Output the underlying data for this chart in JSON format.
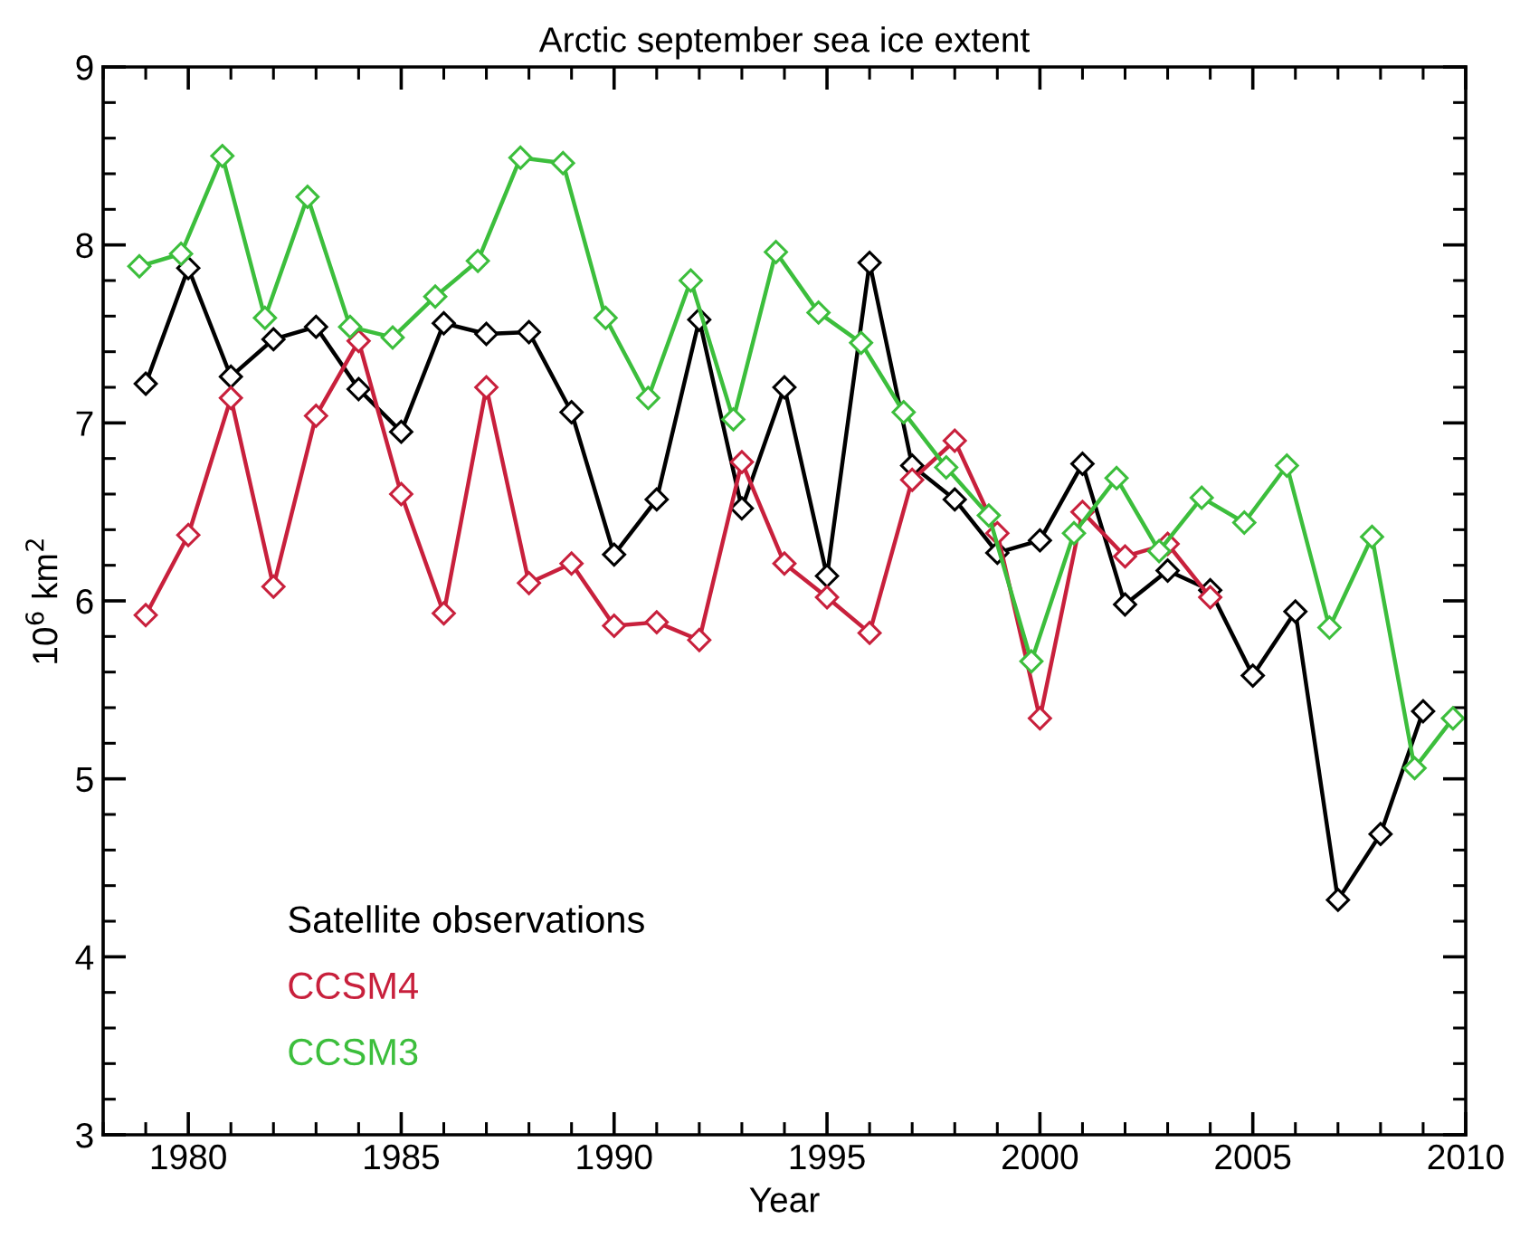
{
  "chart_data": {
    "type": "line",
    "title": "Arctic september sea ice extent",
    "xlabel": "Year",
    "ylabel": "10$^{6}$ km$^{2}$",
    "xlim": [
      1978,
      2010
    ],
    "xticks": [
      1980,
      1985,
      1990,
      1995,
      2000,
      2005,
      2010
    ],
    "ylim": [
      3,
      9
    ],
    "yticks": [
      3,
      4,
      5,
      6,
      7,
      8,
      9
    ],
    "marker": "diamond",
    "grid": false,
    "legend": "bottom left",
    "series": [
      {
        "name": "Satellite observations",
        "color": "#000000",
        "x": [
          1979,
          1980,
          1981,
          1982,
          1983,
          1984,
          1985,
          1986,
          1987,
          1988,
          1989,
          1990,
          1991,
          1992,
          1993,
          1994,
          1995,
          1996,
          1997,
          1998,
          1999,
          2000,
          2001,
          2002,
          2003,
          2004,
          2005,
          2006,
          2007,
          2008,
          2009
        ],
        "values": [
          7.22,
          7.87,
          7.26,
          7.47,
          7.54,
          7.19,
          6.95,
          7.56,
          7.5,
          7.51,
          7.06,
          6.26,
          6.57,
          7.58,
          6.52,
          7.2,
          6.14,
          7.9,
          6.76,
          6.57,
          6.27,
          6.34,
          6.77,
          5.98,
          6.17,
          6.06,
          5.58,
          5.94,
          4.32,
          4.69,
          5.38
        ]
      },
      {
        "name": "CCSM4",
        "color": "#c8203c",
        "x": [
          1979,
          1980,
          1981,
          1982,
          1983,
          1984,
          1985,
          1986,
          1987,
          1988,
          1989,
          1990,
          1991,
          1992,
          1993,
          1994,
          1995,
          1996,
          1997,
          1998,
          1999,
          2000,
          2001,
          2002,
          2003,
          2004
        ],
        "values": [
          5.92,
          6.37,
          7.14,
          6.08,
          7.04,
          7.46,
          6.6,
          5.93,
          7.2,
          6.1,
          6.21,
          5.86,
          5.88,
          5.78,
          6.78,
          6.21,
          6.02,
          5.82,
          6.68,
          6.9,
          6.38,
          5.34,
          6.5,
          6.25,
          6.32,
          6.02
        ]
      },
      {
        "name": "CCSM3",
        "color": "#3cbe3c",
        "x": [
          1978.85,
          1979.83,
          1980.8,
          1981.8,
          1982.8,
          1983.8,
          1984.8,
          1985.8,
          1986.8,
          1987.8,
          1988.8,
          1989.8,
          1990.8,
          1991.8,
          1992.8,
          1993.8,
          1994.8,
          1995.8,
          1996.8,
          1997.8,
          1998.8,
          1999.8,
          2000.8,
          2001.8,
          2002.8,
          2003.8,
          2004.8,
          2005.8,
          2006.8,
          2007.8,
          2008.8,
          2009.7
        ],
        "values": [
          7.88,
          7.95,
          8.5,
          7.59,
          8.27,
          7.54,
          7.48,
          7.71,
          7.91,
          8.49,
          8.46,
          7.59,
          7.14,
          7.8,
          7.02,
          7.96,
          7.62,
          7.45,
          7.06,
          6.75,
          6.48,
          5.66,
          6.38,
          6.69,
          6.28,
          6.58,
          6.44,
          6.76,
          5.85,
          6.36,
          5.06,
          5.34
        ]
      }
    ]
  }
}
